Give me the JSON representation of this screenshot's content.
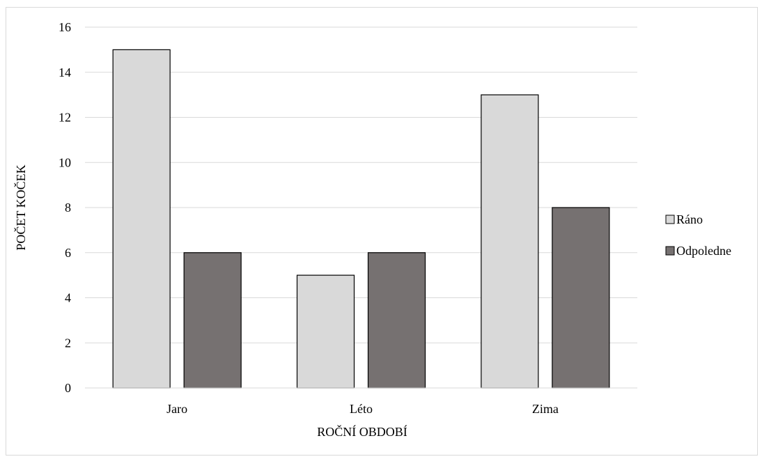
{
  "chart_data": {
    "type": "bar",
    "categories": [
      "Jaro",
      "Léto",
      "Zima"
    ],
    "series": [
      {
        "name": "Ráno",
        "values": [
          15,
          5,
          13
        ],
        "color": "#d9d9d9"
      },
      {
        "name": "Odpoledne",
        "values": [
          6,
          6,
          8
        ],
        "color": "#767171"
      }
    ],
    "xlabel": "ROČNÍ OBDOBÍ",
    "ylabel": "POČET KOČEK",
    "ylim": [
      0,
      16
    ],
    "yticks": [
      0,
      2,
      4,
      6,
      8,
      10,
      12,
      14,
      16
    ],
    "grid": true,
    "legend_position": "right",
    "bar_edge_color": "#000000",
    "grid_color": "#d9d9d9"
  }
}
